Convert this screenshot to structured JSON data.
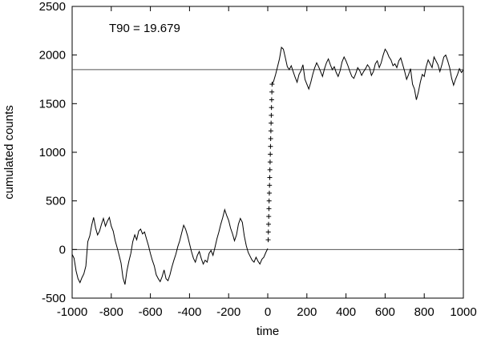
{
  "chart_data": {
    "type": "line",
    "title": "",
    "xlabel": "time",
    "ylabel": "cumulated counts",
    "xlim": [
      -1000,
      1000
    ],
    "ylim": [
      -500,
      2500
    ],
    "xticks": [
      -1000,
      -800,
      -600,
      -400,
      -200,
      0,
      200,
      400,
      600,
      800,
      1000
    ],
    "yticks": [
      -500,
      0,
      500,
      1000,
      1500,
      2000,
      2500
    ],
    "xtick_labels": [
      "-1000",
      "-800",
      "-600",
      "-400",
      "-200",
      "0",
      "200",
      "400",
      "600",
      "800",
      "1000"
    ],
    "ytick_labels": [
      "-500",
      "0",
      "500",
      "1000",
      "1500",
      "2000",
      "2500"
    ],
    "grid": false,
    "annotation": "T90 = 19.679",
    "reference_lines": [
      0,
      1850
    ],
    "line_color": "#000000",
    "series": [
      {
        "style": "line",
        "x": [
          -1000,
          -990,
          -980,
          -970,
          -960,
          -950,
          -940,
          -930,
          -920,
          -910,
          -900,
          -890,
          -880,
          -870,
          -860,
          -850,
          -840,
          -830,
          -820,
          -810,
          -800,
          -790,
          -780,
          -770,
          -760,
          -750,
          -740,
          -730,
          -720,
          -710,
          -700,
          -690,
          -680,
          -670,
          -660,
          -650,
          -640,
          -630,
          -620,
          -610,
          -600,
          -590,
          -580,
          -570,
          -560,
          -550,
          -540,
          -530,
          -520,
          -510,
          -500,
          -490,
          -480,
          -470,
          -460,
          -450,
          -440,
          -430,
          -420,
          -410,
          -400,
          -390,
          -380,
          -370,
          -360,
          -350,
          -340,
          -330,
          -320,
          -310,
          -300,
          -290,
          -280,
          -270,
          -260,
          -250,
          -240,
          -230,
          -220,
          -210,
          -200,
          -190,
          -180,
          -170,
          -160,
          -150,
          -140,
          -130,
          -120,
          -110,
          -100,
          -90,
          -80,
          -70,
          -60,
          -50,
          -40,
          -30,
          -20,
          -10,
          0
        ],
        "y": [
          -50,
          -90,
          -220,
          -300,
          -340,
          -290,
          -250,
          -170,
          80,
          140,
          250,
          330,
          220,
          150,
          190,
          260,
          320,
          240,
          290,
          330,
          240,
          190,
          90,
          20,
          -60,
          -140,
          -290,
          -360,
          -220,
          -120,
          -40,
          80,
          150,
          100,
          190,
          210,
          160,
          180,
          110,
          40,
          -40,
          -110,
          -170,
          -260,
          -300,
          -330,
          -280,
          -210,
          -300,
          -320,
          -260,
          -180,
          -110,
          -50,
          30,
          90,
          170,
          250,
          210,
          140,
          60,
          -20,
          -90,
          -130,
          -60,
          -20,
          -90,
          -150,
          -110,
          -130,
          -40,
          -10,
          -60,
          20,
          110,
          180,
          260,
          330,
          410,
          350,
          300,
          220,
          160,
          90,
          150,
          260,
          320,
          280,
          140,
          40,
          -30,
          -70,
          -110,
          -130,
          -80,
          -120,
          -150,
          -100,
          -80,
          -30,
          10
        ]
      },
      {
        "style": "cross",
        "x": [
          2,
          3,
          4,
          5,
          6,
          7,
          8,
          9,
          10,
          11,
          12,
          13,
          14,
          15,
          16,
          17,
          18,
          19,
          20,
          21,
          22
        ],
        "y": [
          100,
          180,
          260,
          340,
          420,
          500,
          580,
          660,
          740,
          820,
          900,
          980,
          1060,
          1140,
          1220,
          1300,
          1380,
          1460,
          1540,
          1620,
          1700
        ]
      },
      {
        "style": "line",
        "x": [
          22,
          30,
          40,
          50,
          60,
          70,
          80,
          90,
          100,
          110,
          120,
          130,
          140,
          150,
          160,
          170,
          180,
          190,
          200,
          210,
          220,
          230,
          240,
          250,
          260,
          270,
          280,
          290,
          300,
          310,
          320,
          330,
          340,
          350,
          360,
          370,
          380,
          390,
          400,
          410,
          420,
          430,
          440,
          450,
          460,
          470,
          480,
          490,
          500,
          510,
          520,
          530,
          540,
          550,
          560,
          570,
          580,
          590,
          600,
          610,
          620,
          630,
          640,
          650,
          660,
          670,
          680,
          690,
          700,
          710,
          720,
          730,
          740,
          750,
          760,
          770,
          780,
          790,
          800,
          810,
          820,
          830,
          840,
          850,
          860,
          870,
          880,
          890,
          900,
          910,
          920,
          930,
          940,
          950,
          960,
          970,
          980,
          990,
          1000
        ],
        "y": [
          1700,
          1730,
          1800,
          1880,
          1960,
          2080,
          2060,
          1970,
          1880,
          1850,
          1890,
          1830,
          1770,
          1720,
          1800,
          1840,
          1900,
          1750,
          1700,
          1650,
          1720,
          1800,
          1870,
          1920,
          1880,
          1830,
          1780,
          1860,
          1920,
          1960,
          1900,
          1850,
          1880,
          1820,
          1780,
          1840,
          1930,
          1980,
          1940,
          1890,
          1830,
          1780,
          1760,
          1810,
          1870,
          1840,
          1790,
          1830,
          1860,
          1900,
          1870,
          1790,
          1830,
          1910,
          1940,
          1870,
          1920,
          2000,
          2060,
          2030,
          1980,
          1950,
          1890,
          1910,
          1870,
          1940,
          1970,
          1900,
          1830,
          1750,
          1800,
          1860,
          1700,
          1650,
          1540,
          1620,
          1720,
          1800,
          1780,
          1880,
          1950,
          1910,
          1870,
          1980,
          1940,
          1900,
          1830,
          1900,
          1980,
          2000,
          1940,
          1870,
          1760,
          1690,
          1750,
          1800,
          1860,
          1820,
          1850
        ]
      }
    ]
  }
}
